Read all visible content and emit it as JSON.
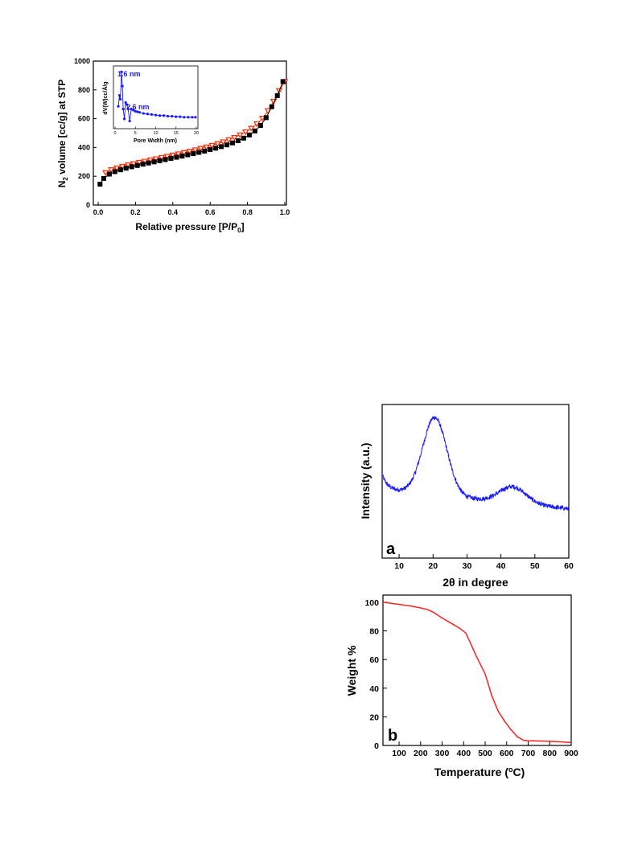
{
  "colors": {
    "adsorption": "#000000",
    "desorption": "#ff2a00",
    "psd": "#1a1aff",
    "xrd": "#1a1aff",
    "tga": "#ff2020"
  },
  "chart_data": [
    {
      "id": "isotherm",
      "type": "scatter",
      "xlabel": "Relative pressure [P/P",
      "xlabel_sub": "0",
      "xlabel_end": "]",
      "ylabel_pre": "N",
      "ylabel_sub": "2",
      "ylabel_post": " volume [cc/g] at STP",
      "xlim": [
        0.0,
        1.0
      ],
      "ylim": [
        0,
        1000
      ],
      "xticks": [
        "0.0",
        "0.2",
        "0.4",
        "0.6",
        "0.8",
        "1.0"
      ],
      "yticks": [
        "0",
        "200",
        "400",
        "600",
        "800",
        "1000"
      ],
      "series": [
        {
          "marker": "square",
          "x": [
            0.01,
            0.03,
            0.06,
            0.09,
            0.12,
            0.15,
            0.18,
            0.21,
            0.24,
            0.27,
            0.3,
            0.33,
            0.36,
            0.39,
            0.42,
            0.45,
            0.48,
            0.51,
            0.54,
            0.57,
            0.6,
            0.63,
            0.66,
            0.69,
            0.72,
            0.75,
            0.78,
            0.81,
            0.84,
            0.87,
            0.9,
            0.93,
            0.96,
            0.99
          ],
          "y": [
            145,
            185,
            215,
            232,
            245,
            256,
            266,
            275,
            284,
            292,
            300,
            308,
            316,
            324,
            332,
            340,
            349,
            357,
            366,
            375,
            385,
            395,
            406,
            418,
            432,
            447,
            465,
            487,
            515,
            553,
            607,
            683,
            760,
            858
          ]
        },
        {
          "marker": "triangle",
          "x": [
            0.04,
            0.07,
            0.1,
            0.13,
            0.16,
            0.19,
            0.22,
            0.25,
            0.28,
            0.31,
            0.34,
            0.37,
            0.4,
            0.43,
            0.46,
            0.49,
            0.52,
            0.55,
            0.58,
            0.61,
            0.64,
            0.67,
            0.7,
            0.73,
            0.76,
            0.79,
            0.82,
            0.85,
            0.88,
            0.91,
            0.94,
            0.97,
            1.0
          ],
          "y": [
            225,
            245,
            257,
            268,
            278,
            287,
            296,
            304,
            313,
            321,
            330,
            338,
            347,
            355,
            364,
            373,
            383,
            393,
            403,
            414,
            426,
            439,
            453,
            469,
            487,
            508,
            533,
            564,
            603,
            655,
            720,
            795,
            858
          ]
        }
      ],
      "inset": {
        "type": "line",
        "xlabel": "Pore Width (nm)",
        "ylabel": "dV(W)cc/Å/g",
        "xlim": [
          0,
          20
        ],
        "xticks": [
          "0",
          "5",
          "10",
          "15",
          "20"
        ],
        "annotations": [
          "1.6 nm",
          "2.6 nm"
        ],
        "x": [
          0.8,
          1.1,
          1.3,
          1.6,
          1.8,
          2.0,
          2.3,
          2.6,
          2.9,
          3.2,
          3.6,
          4.0,
          4.5,
          5.0,
          5.5,
          6.0,
          7,
          8,
          9,
          10,
          11,
          12,
          13,
          14,
          15,
          16,
          17,
          18,
          19,
          19.8
        ],
        "y": [
          0.35,
          0.55,
          0.48,
          0.98,
          0.72,
          0.3,
          0.12,
          0.42,
          0.38,
          0.3,
          0.08,
          0.3,
          0.28,
          0.26,
          0.25,
          0.24,
          0.22,
          0.21,
          0.2,
          0.19,
          0.18,
          0.18,
          0.17,
          0.17,
          0.16,
          0.16,
          0.15,
          0.15,
          0.15,
          0.15
        ]
      }
    },
    {
      "id": "xrd",
      "type": "line",
      "panel_label": "a",
      "xlabel": "2θ in degree",
      "ylabel": "Intensity (a.u.)",
      "xlim": [
        5,
        60
      ],
      "xticks": [
        "10",
        "20",
        "30",
        "40",
        "50",
        "60"
      ],
      "peaks": [
        {
          "center": 20.5,
          "height": 0.62,
          "width": 5.0
        },
        {
          "center": 43.5,
          "height": 0.13,
          "width": 5.5
        }
      ]
    },
    {
      "id": "tga",
      "type": "line",
      "panel_label": "b",
      "xlabel": "Temperature (",
      "xlabel_sup": "o",
      "xlabel_end": "C)",
      "ylabel": "Weight %",
      "xlim": [
        25,
        900
      ],
      "ylim": [
        0,
        105
      ],
      "xticks": [
        "100",
        "200",
        "300",
        "400",
        "500",
        "600",
        "700",
        "800",
        "900"
      ],
      "yticks": [
        "0",
        "20",
        "40",
        "60",
        "80",
        "100"
      ],
      "x": [
        25,
        100,
        150,
        200,
        230,
        260,
        300,
        340,
        380,
        410,
        430,
        460,
        500,
        530,
        560,
        590,
        620,
        650,
        680,
        700,
        800,
        900
      ],
      "y": [
        100,
        98.5,
        97.5,
        96,
        95,
        93,
        89,
        85.5,
        82,
        78.5,
        72,
        62,
        50,
        35,
        24,
        17,
        11,
        6,
        3.5,
        3.3,
        3.0,
        2.0
      ]
    }
  ]
}
